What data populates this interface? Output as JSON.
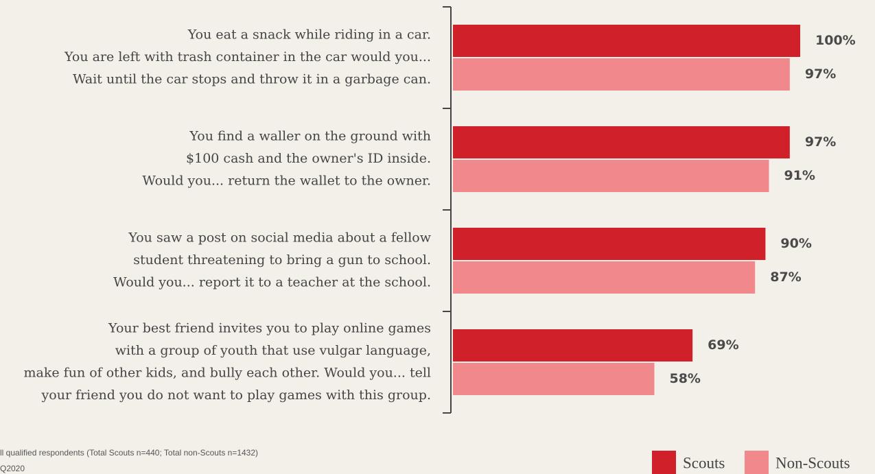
{
  "chart_data": {
    "type": "hbar",
    "categories": [
      [
        "You eat a snack while riding in a car.",
        "You are left with trash container in the car would you...",
        "Wait until the car stops and throw it in a garbage can."
      ],
      [
        "You find a waller on the ground with",
        "$100 cash and the owner's ID inside.",
        "Would you... return the wallet to the owner."
      ],
      [
        "You saw a post on social media about a fellow",
        "student threatening to bring a gun to school.",
        "Would you... report it to a teacher at the school."
      ],
      [
        "Your best friend invites you to play online games",
        "with a group of youth that use vulgar language,",
        "make fun of other kids, and bully each other. Would you... tell",
        "your friend you do not want to play games with this group."
      ]
    ],
    "series": [
      {
        "name": "Scouts",
        "color": "#d0202a",
        "values": [
          100,
          97,
          90,
          69
        ],
        "value_labels": [
          "100%",
          "97%",
          "90%",
          "69%"
        ]
      },
      {
        "name": "Non-Scouts",
        "color": "#f0888c",
        "values": [
          97,
          91,
          87,
          58
        ],
        "value_labels": [
          "97%",
          "91%",
          "87%",
          "58%"
        ]
      }
    ],
    "xlim": [
      0,
      100
    ],
    "notes": [
      "ll qualified respondents (Total Scouts n=440; Total non-Scouts n=1432)",
      "Q2020"
    ]
  }
}
